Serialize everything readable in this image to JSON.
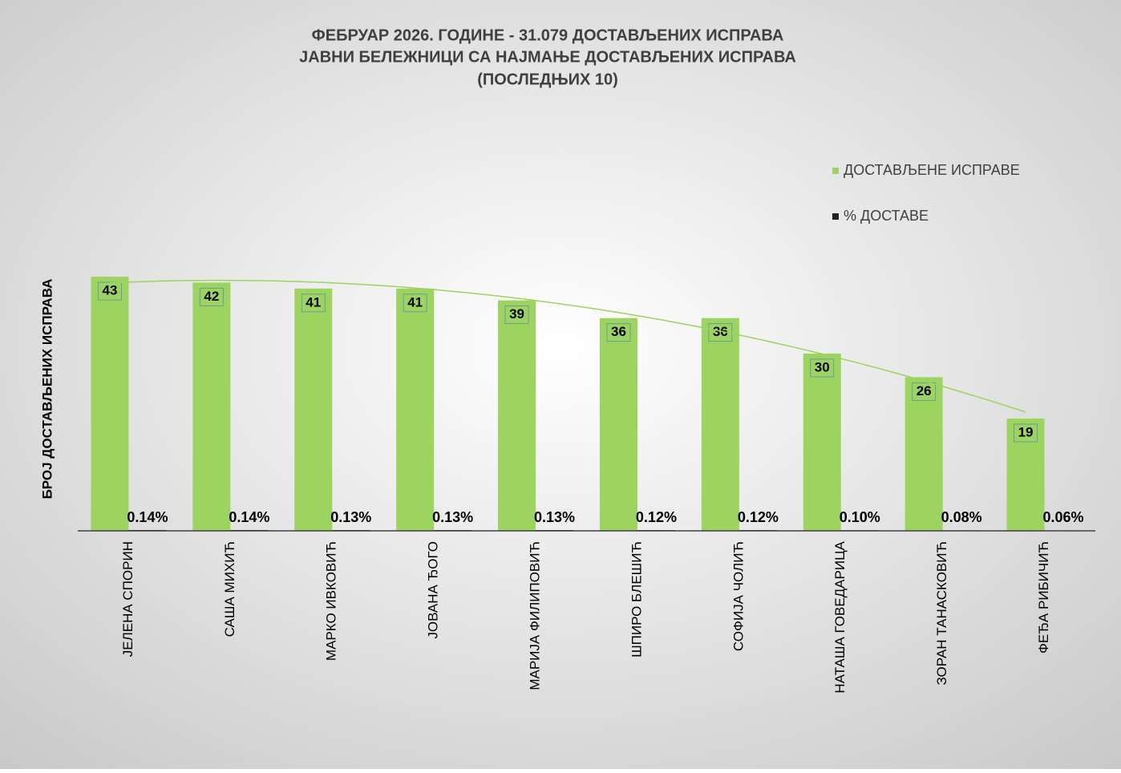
{
  "chart_data": {
    "type": "bar",
    "title": [
      "ФЕБРУАР 2026. ГОДИНЕ - 31.079 ДОСТАВЉЕНИХ ИСПРАВА",
      "ЈАВНИ БЕЛЕЖНИЦИ СА НАЈМАЊЕ ДОСТАВЉЕНИХ ИСПРАВА",
      "(ПОСЛЕДЊИХ 10)"
    ],
    "y_label": "БРОЈ ДОСТАВЉЕНИХ ИСПРАВА",
    "categories": [
      "ЈЕЛЕНА СПОРИН",
      "САША МИХИЋ",
      "МАРКО ИВКОВИЋ",
      "ЈОВАНА ЂОГО",
      "МАРИЈА ФИЛИПОВИЋ",
      "ШПИРО БЛЕШИЋ",
      "СОФИЈА ЧОЛИЋ",
      "НАТАША ГОВЕДАРИЦА",
      "ЗОРАН ТАНАСКОВИЋ",
      "ФЕЂА РИБИЧИЋ"
    ],
    "series": [
      {
        "name": "ДОСТАВЉЕНЕ ИСПРАВЕ",
        "color": "#9dd35f",
        "values": [
          43,
          42,
          41,
          41,
          39,
          36,
          36,
          30,
          26,
          19
        ]
      },
      {
        "name": "% ДОСТАВЕ",
        "color": "#222222",
        "values": [
          0.14,
          0.14,
          0.13,
          0.13,
          0.13,
          0.12,
          0.12,
          0.1,
          0.08,
          0.06
        ],
        "value_labels": [
          "0.14%",
          "0.14%",
          "0.13%",
          "0.13%",
          "0.13%",
          "0.12%",
          "0.12%",
          "0.10%",
          "0.08%",
          "0.06%"
        ]
      }
    ],
    "ylim": [
      0,
      50
    ],
    "trendline": true,
    "legend": "right"
  }
}
